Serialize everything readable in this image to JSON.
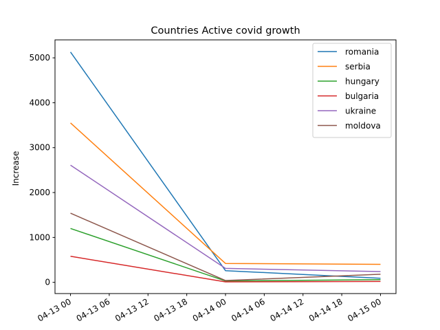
{
  "chart_data": {
    "type": "line",
    "title": "Countries Active covid growth",
    "xlabel": "",
    "ylabel": "Increase",
    "x": [
      "04-13 00",
      "04-14 00",
      "04-15 00"
    ],
    "x_ticks": [
      "04-13 00",
      "04-13 06",
      "04-13 12",
      "04-13 18",
      "04-14 00",
      "04-14 06",
      "04-14 12",
      "04-14 18",
      "04-15 00"
    ],
    "x_tick_hours": [
      0,
      6,
      12,
      18,
      24,
      30,
      36,
      42,
      48
    ],
    "x_hours": [
      0,
      24,
      48
    ],
    "xlim_hours": [
      -2.4,
      50.4
    ],
    "y_ticks": [
      0,
      1000,
      2000,
      3000,
      4000,
      5000
    ],
    "ylim": [
      -250,
      5400
    ],
    "grid": false,
    "legend_position": "top-right",
    "series": [
      {
        "name": "romania",
        "color": "#1f77b4",
        "values": [
          5130,
          260,
          90
        ]
      },
      {
        "name": "serbia",
        "color": "#ff7f0e",
        "values": [
          3550,
          420,
          400
        ]
      },
      {
        "name": "hungary",
        "color": "#2ca02c",
        "values": [
          1200,
          30,
          60
        ]
      },
      {
        "name": "bulgaria",
        "color": "#d62728",
        "values": [
          580,
          10,
          20
        ]
      },
      {
        "name": "ukraine",
        "color": "#9467bd",
        "values": [
          2610,
          310,
          240
        ]
      },
      {
        "name": "moldova",
        "color": "#8c564b",
        "values": [
          1540,
          40,
          180
        ]
      }
    ]
  }
}
